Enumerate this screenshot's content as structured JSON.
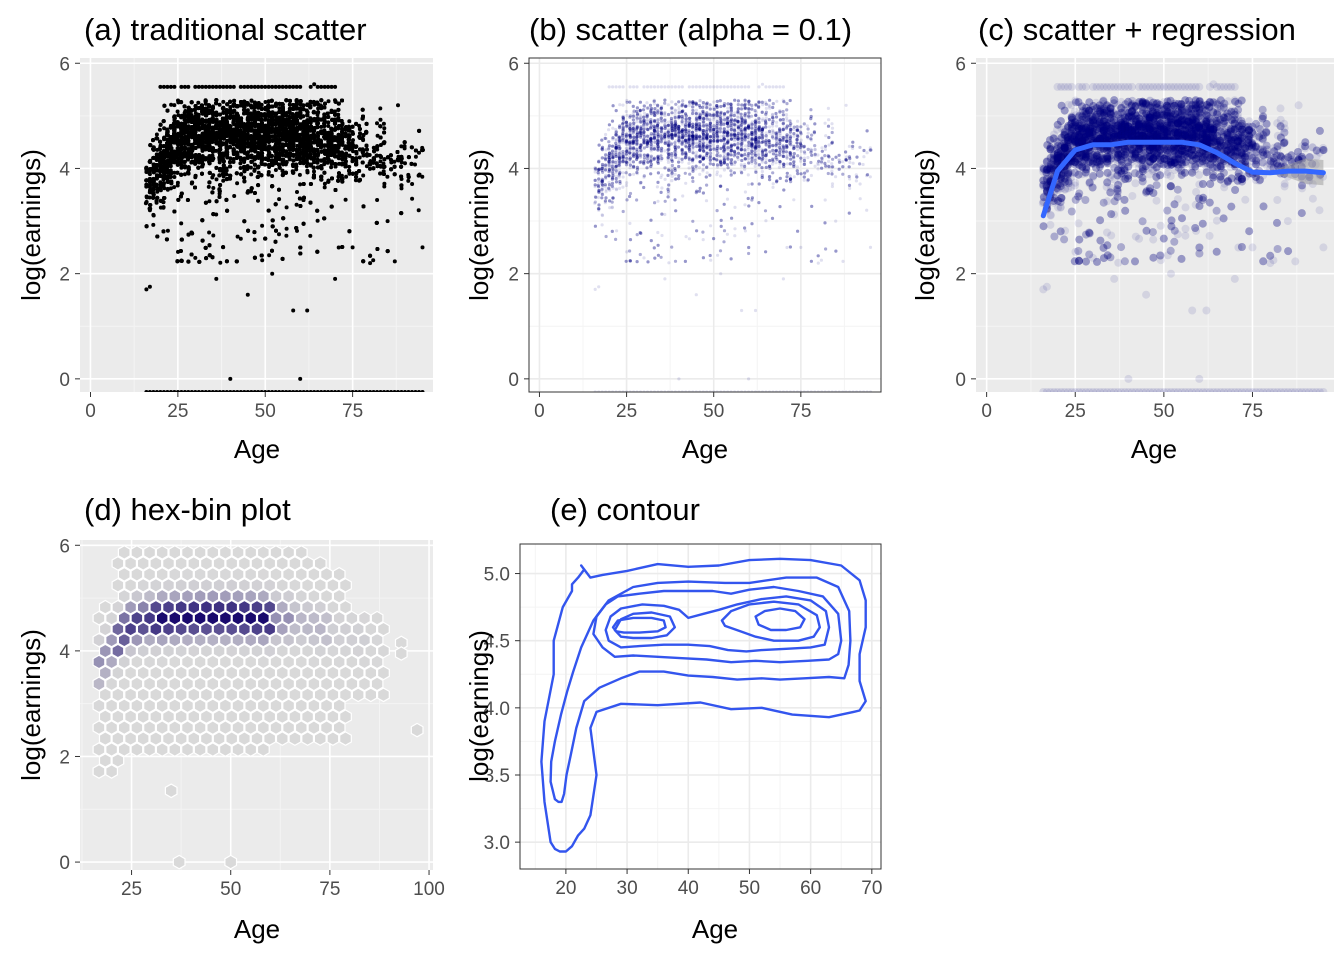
{
  "chart_data": [
    {
      "id": "a",
      "type": "scatter",
      "title": "(a) traditional scatter",
      "xlabel": "Age",
      "ylabel": "log(earnings)",
      "xlim": [
        -3,
        98
      ],
      "ylim": [
        -0.25,
        6.1
      ],
      "xticks": [
        0,
        25,
        50,
        75
      ],
      "yticks": [
        0,
        2,
        4,
        6
      ],
      "theme": "gray",
      "point_color": "#000000",
      "point_alpha": 1,
      "description_points": {
        "age_range": [
          16,
          95
        ],
        "dense_band_log_earnings": [
          3.6,
          5.3
        ],
        "cap_value": 5.55,
        "zero_row_value": -0.25
      }
    },
    {
      "id": "b",
      "type": "scatter",
      "title": "(b) scatter (alpha = 0.1)",
      "xlabel": "Age",
      "ylabel": "log(earnings)",
      "xlim": [
        -3,
        98
      ],
      "ylim": [
        -0.25,
        6.1
      ],
      "xticks": [
        0,
        25,
        50,
        75
      ],
      "yticks": [
        0,
        2,
        4,
        6
      ],
      "theme": "bw",
      "point_color": "#000080",
      "point_alpha": 0.1
    },
    {
      "id": "c",
      "type": "scatter",
      "title": "(c) scatter + regression",
      "xlabel": "Age",
      "ylabel": "log(earnings)",
      "xlim": [
        -3,
        98
      ],
      "ylim": [
        -0.25,
        6.1
      ],
      "xticks": [
        0,
        25,
        50,
        75
      ],
      "yticks": [
        0,
        2,
        4,
        6
      ],
      "theme": "gray",
      "point_color": "#000080",
      "point_alpha": 0.1,
      "smooth_color": "#3366FF",
      "smooth": {
        "x": [
          16,
          20,
          25,
          30,
          35,
          40,
          45,
          50,
          55,
          60,
          65,
          70,
          75,
          80,
          85,
          90,
          95
        ],
        "y": [
          3.1,
          3.95,
          4.35,
          4.45,
          4.45,
          4.5,
          4.5,
          4.5,
          4.5,
          4.45,
          4.3,
          4.1,
          3.93,
          3.92,
          3.95,
          3.95,
          3.92
        ]
      }
    },
    {
      "id": "d",
      "type": "heatmap",
      "title": "(d) hex-bin plot",
      "xlabel": "Age",
      "ylabel": "log(earnings)",
      "xlim": [
        12,
        101
      ],
      "ylim": [
        -0.15,
        6.1
      ],
      "xticks": [
        25,
        50,
        75,
        100
      ],
      "yticks": [
        0,
        2,
        4,
        6
      ],
      "theme": "gray",
      "fill_low": "#d9d9d9",
      "fill_high": "#1a0a6e",
      "hex_outline": "#ffffff",
      "isolated_hexes": [
        [
          37,
          0
        ],
        [
          50,
          0
        ],
        [
          35,
          1.35
        ],
        [
          97,
          2.5
        ],
        [
          93,
          4.15
        ],
        [
          93,
          3.95
        ]
      ]
    },
    {
      "id": "e",
      "type": "line",
      "title": "(e) contour",
      "xlabel": "Age",
      "ylabel": "log(earnings)",
      "xlim": [
        12.5,
        71.5
      ],
      "ylim": [
        2.8,
        5.22
      ],
      "xticks": [
        20,
        30,
        40,
        50,
        60,
        70
      ],
      "yticks": [
        "3.0",
        "3.5",
        "4.0",
        "4.5",
        "5.0"
      ],
      "theme": "bw",
      "line_color": "#3355EE",
      "contours": [
        {
          "x": [
            17.5,
            16.5,
            16,
            16.5,
            18,
            18,
            19.5,
            21,
            21,
            22,
            23,
            22.5,
            24,
            26,
            30,
            35,
            40,
            45,
            50,
            55,
            60,
            65,
            68,
            69,
            69,
            68,
            68,
            69,
            68,
            67,
            63,
            57,
            52,
            47,
            42,
            35,
            29,
            25,
            24,
            25,
            24,
            23,
            22,
            21,
            20,
            19,
            18.2,
            17.5
          ],
          "y": [
            3.0,
            3.3,
            3.6,
            3.9,
            4.25,
            4.5,
            4.75,
            4.87,
            4.92,
            4.97,
            5.03,
            5.06,
            4.97,
            4.99,
            5.02,
            5.07,
            5.05,
            5.06,
            5.1,
            5.11,
            5.1,
            5.06,
            4.95,
            4.8,
            4.6,
            4.4,
            4.2,
            4.05,
            3.98,
            3.97,
            3.93,
            3.95,
            4.0,
            3.99,
            4.04,
            4.02,
            4.03,
            3.97,
            3.85,
            3.5,
            3.2,
            3.1,
            3.05,
            2.97,
            2.93,
            2.93,
            2.95,
            3.0
          ]
        },
        {
          "x": [
            18.2,
            17.5,
            17.6,
            18.2,
            19.2,
            20.2,
            21.2,
            22.5,
            24.5,
            27,
            31,
            35,
            40,
            46,
            50,
            56,
            61,
            64.5,
            66.3,
            66.5,
            66.2,
            65.5,
            63,
            59,
            55,
            52,
            48,
            44,
            40,
            36,
            32,
            29,
            25.5,
            23,
            21.7,
            20.8,
            20.1,
            19.7,
            19.3,
            18.8,
            18.2
          ],
          "y": [
            3.32,
            3.45,
            3.6,
            3.75,
            3.95,
            4.12,
            4.27,
            4.45,
            4.65,
            4.8,
            4.9,
            4.93,
            4.94,
            4.93,
            4.93,
            4.97,
            4.97,
            4.9,
            4.72,
            4.5,
            4.32,
            4.22,
            4.23,
            4.22,
            4.21,
            4.22,
            4.21,
            4.23,
            4.24,
            4.27,
            4.27,
            4.22,
            4.15,
            4.05,
            3.85,
            3.65,
            3.5,
            3.36,
            3.3,
            3.3,
            3.32
          ]
        },
        {
          "x": [
            24.5,
            25,
            26.5,
            28.5,
            32,
            36,
            40,
            44,
            47,
            50,
            54,
            58,
            62,
            64.5,
            65,
            64.5,
            63,
            59.5,
            55,
            51,
            47,
            43,
            39,
            35,
            31,
            28,
            26,
            24.5
          ],
          "y": [
            4.55,
            4.68,
            4.77,
            4.83,
            4.85,
            4.87,
            4.87,
            4.87,
            4.85,
            4.88,
            4.9,
            4.87,
            4.83,
            4.7,
            4.5,
            4.4,
            4.36,
            4.35,
            4.34,
            4.35,
            4.34,
            4.36,
            4.37,
            4.38,
            4.39,
            4.38,
            4.45,
            4.55
          ]
        },
        {
          "x": [
            26.5,
            27.3,
            29,
            32.5,
            36,
            38.5,
            40,
            42.5,
            45,
            48,
            52,
            56,
            60,
            62.5,
            63,
            62.3,
            60,
            56,
            52,
            49.5,
            46.5,
            43.5,
            40,
            36,
            32,
            29,
            27,
            26.5
          ],
          "y": [
            4.58,
            4.68,
            4.74,
            4.77,
            4.76,
            4.73,
            4.67,
            4.7,
            4.73,
            4.77,
            4.81,
            4.83,
            4.8,
            4.72,
            4.6,
            4.47,
            4.45,
            4.44,
            4.43,
            4.42,
            4.43,
            4.46,
            4.47,
            4.47,
            4.46,
            4.45,
            4.5,
            4.58
          ]
        },
        {
          "x": [
            28,
            29,
            31,
            34,
            37,
            37.8,
            36.5,
            34,
            31,
            29,
            28
          ],
          "y": [
            4.58,
            4.66,
            4.7,
            4.71,
            4.68,
            4.6,
            4.54,
            4.52,
            4.52,
            4.53,
            4.58
          ]
        },
        {
          "x": [
            45.5,
            47,
            50,
            54,
            58,
            61,
            61.5,
            60.5,
            58,
            54,
            51,
            48.5,
            46,
            45.5
          ],
          "y": [
            4.65,
            4.72,
            4.77,
            4.79,
            4.77,
            4.69,
            4.6,
            4.53,
            4.5,
            4.5,
            4.53,
            4.57,
            4.61,
            4.65
          ]
        },
        {
          "x": [
            27.7,
            28.5,
            31,
            34,
            36,
            36.3,
            35,
            32,
            29.5,
            28.2,
            27.7
          ],
          "y": [
            4.6,
            4.65,
            4.67,
            4.67,
            4.65,
            4.6,
            4.57,
            4.56,
            4.56,
            4.57,
            4.6
          ]
        },
        {
          "x": [
            51,
            52.5,
            55,
            57.5,
            59,
            58.3,
            56,
            53.5,
            51.5,
            51
          ],
          "y": [
            4.68,
            4.72,
            4.74,
            4.72,
            4.66,
            4.6,
            4.58,
            4.58,
            4.62,
            4.68
          ]
        }
      ]
    }
  ]
}
